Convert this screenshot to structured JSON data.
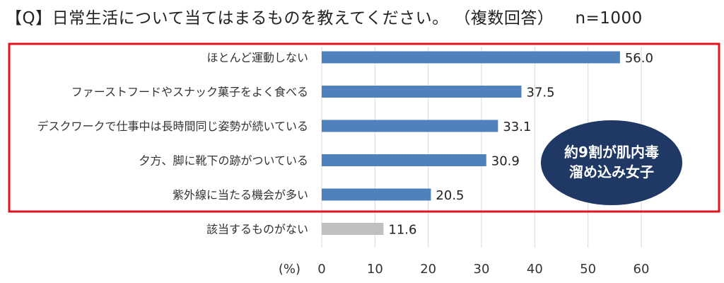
{
  "header": {
    "question": "【Q】日常生活について当てはまるものを教えてください。 （複数回答）",
    "sample": "n=1000"
  },
  "callout": {
    "line1": "約9割が肌内毒",
    "line2": "溜め込み女子"
  },
  "colors": {
    "bar": "#4f81bd",
    "bar_none": "#bfbfbf",
    "frame": "#e0141e",
    "callout": "#1f3864"
  },
  "chart_data": {
    "type": "bar",
    "orientation": "horizontal",
    "title": "【Q】日常生活について当てはまるものを教えてください。 （複数回答） n=1000",
    "categories": [
      "ほとんど運動しない",
      "ファーストフードやスナック菓子をよく食べる",
      "デスクワークで仕事中は長時間同じ姿勢が続いている",
      "夕方、脚に靴下の跡がついている",
      "紫外線に当たる機会が多い",
      "該当するものがない"
    ],
    "values": [
      56.0,
      37.5,
      33.1,
      30.9,
      20.5,
      11.6
    ],
    "value_labels": [
      "56.0",
      "37.5",
      "33.1",
      "30.9",
      "20.5",
      "11.6"
    ],
    "xlabel": "(%)",
    "xlim": [
      0,
      60
    ],
    "ticks": [
      0,
      10,
      20,
      30,
      40,
      50,
      60
    ],
    "grid": true
  }
}
